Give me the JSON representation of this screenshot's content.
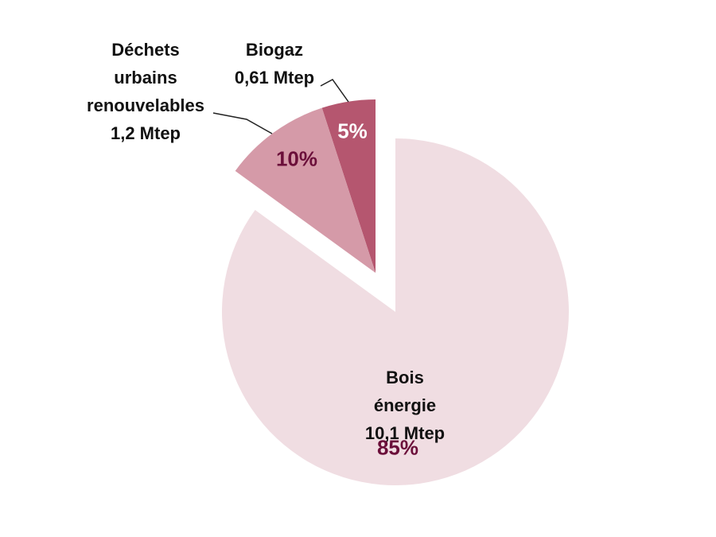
{
  "chart_data": {
    "type": "pie",
    "categories": [
      "Bois énergie",
      "Déchets urbains renouvelables",
      "Biogaz"
    ],
    "quantity_labels": [
      "10,1 Mtep",
      "1,2 Mtep",
      "0,61 Mtep"
    ],
    "values": [
      85,
      10,
      5
    ],
    "value_labels": [
      "85%",
      "10%",
      "5%"
    ],
    "colors": [
      "#f0dde2",
      "#d59aa8",
      "#b5566f"
    ]
  }
}
